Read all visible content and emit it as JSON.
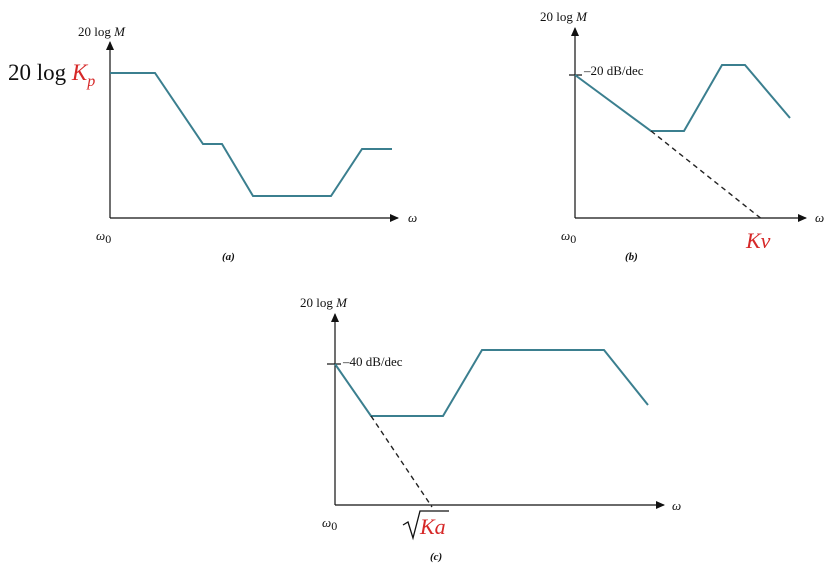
{
  "colors": {
    "curve": "#3b7f8f",
    "highlight": "#d62828",
    "axis": "#111111"
  },
  "panels": {
    "a": {
      "caption": "(a)",
      "y_axis_label_prefix": "20 log ",
      "y_axis_label_var": "M",
      "x_axis_label": "ω",
      "origin_label": "ω",
      "origin_sub": "0",
      "level_prefix": "20 log ",
      "level_var": "K",
      "level_sub": "p"
    },
    "b": {
      "caption": "(b)",
      "y_axis_label_prefix": "20 log ",
      "y_axis_label_var": "M",
      "x_axis_label": "ω",
      "origin_label": "ω",
      "origin_sub": "0",
      "slope_label": "–20 dB/dec",
      "intercept_label": "Kv"
    },
    "c": {
      "caption": "(c)",
      "y_axis_label_prefix": "20 log ",
      "y_axis_label_var": "M",
      "x_axis_label": "ω",
      "origin_label": "ω",
      "origin_sub": "0",
      "slope_label": "–40 dB/dec",
      "intercept_label": "Ka"
    }
  }
}
